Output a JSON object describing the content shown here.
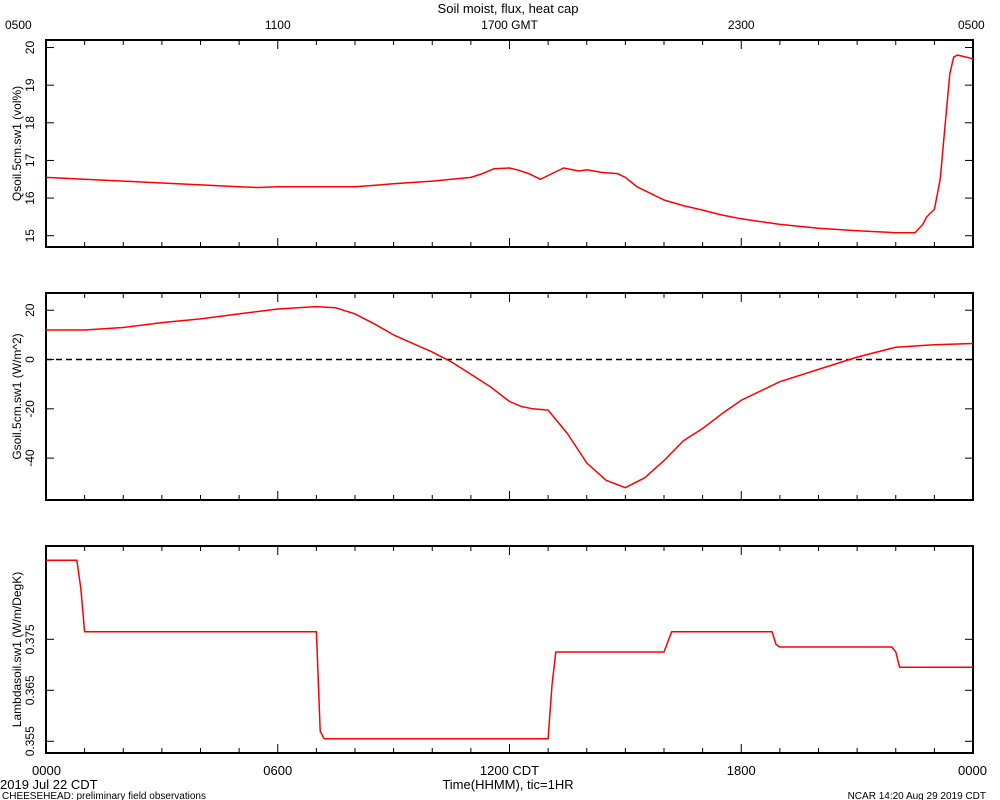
{
  "chart_data": {
    "type": "line",
    "title": "Soil moist, flux, heat cap",
    "xlabel": "Time(HHMM), tic=1HR",
    "top_axis_ticks": [
      "0500",
      "1100",
      "1700 GMT",
      "2300",
      "0500"
    ],
    "bottom_axis_ticks": [
      "0000",
      "0600",
      "1200 CDT",
      "1800",
      "0000"
    ],
    "xlim": [
      0,
      24
    ],
    "date_label": "2019 Jul 22 CDT",
    "footer_left": "CHEESEHEAD: preliminary field observations",
    "footer_right": "NCAR 14:20 Aug 29 2019 CDT",
    "line_color": "#ff0000",
    "panels": [
      {
        "ylabel": "Qsoil.5cm.sw1 (vol%)",
        "ylim": [
          14.7,
          20.2
        ],
        "ytick_values": [
          15,
          16,
          17,
          18,
          19,
          20
        ],
        "ytick_labels": [
          "15",
          "16",
          "17",
          "18",
          "19",
          "20"
        ],
        "zero_line": false,
        "series": [
          {
            "x": [
              0,
              1,
              2,
              3,
              4,
              5,
              5.5,
              6,
              7,
              8,
              9,
              10,
              10.5,
              11,
              11.3,
              11.6,
              12,
              12.2,
              12.5,
              12.8,
              13,
              13.4,
              13.8,
              14,
              14.4,
              14.8,
              15,
              15.3,
              15.6,
              16,
              16.5,
              17,
              17.5,
              18,
              19,
              20,
              21,
              22,
              22.5,
              22.7,
              22.8,
              23.0,
              23.15,
              23.3,
              23.4,
              23.5,
              23.6,
              23.8,
              24
            ],
            "y": [
              16.55,
              16.5,
              16.45,
              16.4,
              16.35,
              16.3,
              16.28,
              16.3,
              16.3,
              16.3,
              16.38,
              16.45,
              16.5,
              16.55,
              16.65,
              16.78,
              16.8,
              16.75,
              16.65,
              16.5,
              16.6,
              16.8,
              16.72,
              16.75,
              16.68,
              16.65,
              16.55,
              16.3,
              16.15,
              15.95,
              15.8,
              15.68,
              15.55,
              15.45,
              15.3,
              15.2,
              15.13,
              15.08,
              15.08,
              15.3,
              15.5,
              15.7,
              16.5,
              18.2,
              19.3,
              19.75,
              19.8,
              19.75,
              19.7
            ]
          }
        ]
      },
      {
        "ylabel": "Gsoil.5cm.sw1 (W/m^2)",
        "ylim": [
          -57,
          27
        ],
        "ytick_values": [
          -40,
          -20,
          0,
          20
        ],
        "ytick_labels": [
          "-40",
          "-20",
          "0",
          "20"
        ],
        "zero_line": true,
        "series": [
          {
            "x": [
              0,
              1,
              2,
              3,
              4,
              5,
              6,
              7,
              7.5,
              8,
              8.5,
              9,
              10,
              10.5,
              11,
              11.5,
              12,
              12.3,
              12.6,
              13,
              13.5,
              14,
              14.5,
              15,
              15.5,
              16,
              16.5,
              17,
              17.5,
              18,
              19,
              20,
              21,
              22,
              23,
              24
            ],
            "y": [
              12,
              12,
              13,
              15,
              16.5,
              18.5,
              20.5,
              21.5,
              21,
              18.5,
              14.5,
              10,
              3,
              -1,
              -6,
              -11,
              -17,
              -19,
              -20,
              -20.5,
              -30,
              -42,
              -49,
              -52,
              -48,
              -41,
              -33,
              -28,
              -22,
              -16.5,
              -9,
              -4,
              1,
              5,
              6,
              6.5
            ]
          }
        ]
      },
      {
        "ylabel": "Lambdasoil.sw1 (W/m/DegK)",
        "ylim": [
          0.3527,
          0.3933
        ],
        "ytick_values": [
          0.355,
          0.365,
          0.375
        ],
        "ytick_labels": [
          "0.355",
          "0.365",
          "0.375"
        ],
        "zero_line": false,
        "series": [
          {
            "x": [
              0,
              0.8,
              0.9,
              1.0,
              7.0,
              7.1,
              7.2,
              13.0,
              13.1,
              13.2,
              16.0,
              16.2,
              18.8,
              18.9,
              19.0,
              21.9,
              22.0,
              22.1,
              24
            ],
            "y": [
              0.3905,
              0.3905,
              0.385,
              0.3765,
              0.3765,
              0.357,
              0.3555,
              0.3555,
              0.366,
              0.3725,
              0.3725,
              0.3765,
              0.3765,
              0.374,
              0.3735,
              0.3735,
              0.3725,
              0.3695,
              0.3695
            ]
          }
        ]
      }
    ]
  }
}
